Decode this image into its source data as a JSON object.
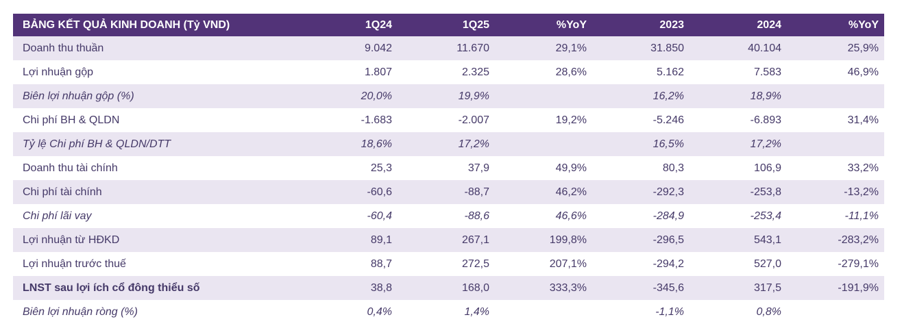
{
  "colors": {
    "header_bg": "#523378",
    "header_text": "#FFFFFF",
    "stripe_bg": "#EAE5F1",
    "text": "#453968"
  },
  "table": {
    "title": "BẢNG KẾT QUẢ KINH DOANH (Tỷ VND)",
    "columns": [
      "1Q24",
      "1Q25",
      "%YoY",
      "2023",
      "2024",
      "%YoY"
    ],
    "rows": [
      {
        "label": "Doanh thu thuần",
        "values": [
          "9.042",
          "11.670",
          "29,1%",
          "31.850",
          "40.104",
          "25,9%"
        ],
        "style": "normal"
      },
      {
        "label": "Lợi nhuận gộp",
        "values": [
          "1.807",
          "2.325",
          "28,6%",
          "5.162",
          "7.583",
          "46,9%"
        ],
        "style": "normal"
      },
      {
        "label": "Biên lợi nhuận gộp (%)",
        "values": [
          "20,0%",
          "19,9%",
          "",
          "16,2%",
          "18,9%",
          ""
        ],
        "style": "italic"
      },
      {
        "label": "Chi phí BH & QLDN",
        "values": [
          "-1.683",
          "-2.007",
          "19,2%",
          "-5.246",
          "-6.893",
          "31,4%"
        ],
        "style": "normal"
      },
      {
        "label": "Tỷ lệ Chi phí BH & QLDN/DTT",
        "values": [
          "18,6%",
          "17,2%",
          "",
          "16,5%",
          "17,2%",
          ""
        ],
        "style": "italic"
      },
      {
        "label": "Doanh thu tài chính",
        "values": [
          "25,3",
          "37,9",
          "49,9%",
          "80,3",
          "106,9",
          "33,2%"
        ],
        "style": "normal"
      },
      {
        "label": "Chi phí tài chính",
        "values": [
          "-60,6",
          "-88,7",
          "46,2%",
          "-292,3",
          "-253,8",
          "-13,2%"
        ],
        "style": "normal"
      },
      {
        "label": "Chi phí lãi vay",
        "values": [
          "-60,4",
          "-88,6",
          "46,6%",
          "-284,9",
          "-253,4",
          "-11,1%"
        ],
        "style": "italic"
      },
      {
        "label": "Lợi nhuận từ HĐKD",
        "values": [
          "89,1",
          "267,1",
          "199,8%",
          "-296,5",
          "543,1",
          "-283,2%"
        ],
        "style": "normal"
      },
      {
        "label": "Lợi nhuận trước thuế",
        "values": [
          "88,7",
          "272,5",
          "207,1%",
          "-294,2",
          "527,0",
          "-279,1%"
        ],
        "style": "normal"
      },
      {
        "label": "LNST sau lợi ích cổ đông thiểu số",
        "values": [
          "38,8",
          "168,0",
          "333,3%",
          "-345,6",
          "317,5",
          "-191,9%"
        ],
        "style": "bold-label"
      },
      {
        "label": "Biên lợi nhuận ròng (%)",
        "values": [
          "0,4%",
          "1,4%",
          "",
          "-1,1%",
          "0,8%",
          ""
        ],
        "style": "italic"
      }
    ]
  }
}
